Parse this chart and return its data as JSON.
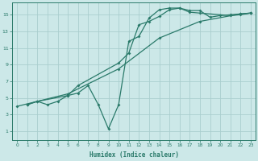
{
  "bg_color": "#cce8e8",
  "grid_color": "#aacece",
  "line_color": "#2a7a6a",
  "xlabel": "Humidex (Indice chaleur)",
  "xlim": [
    -0.5,
    23.5
  ],
  "ylim": [
    0,
    16.5
  ],
  "xticks": [
    0,
    1,
    2,
    3,
    4,
    5,
    6,
    7,
    8,
    9,
    10,
    11,
    12,
    13,
    14,
    15,
    16,
    17,
    18,
    19,
    20,
    21,
    22,
    23
  ],
  "yticks": [
    1,
    3,
    5,
    7,
    9,
    11,
    13,
    15
  ],
  "line1_x": [
    1,
    2,
    3,
    4,
    5,
    6,
    7,
    8,
    9,
    10,
    11,
    12,
    13,
    14,
    15,
    16,
    17,
    18,
    19,
    20,
    21,
    22,
    23
  ],
  "line1_y": [
    4.2,
    4.6,
    4.2,
    4.6,
    5.3,
    5.6,
    6.5,
    4.2,
    1.3,
    4.2,
    11.8,
    12.4,
    14.6,
    15.6,
    15.8,
    15.8,
    15.5,
    15.5,
    14.7,
    14.9,
    15.0,
    15.1,
    15.2
  ],
  "line2_x": [
    1,
    2,
    5,
    6,
    10,
    11,
    12,
    13,
    14,
    15,
    16,
    17,
    18,
    21,
    22,
    23
  ],
  "line2_y": [
    4.2,
    4.6,
    5.3,
    6.5,
    9.2,
    10.4,
    13.8,
    14.2,
    14.8,
    15.6,
    15.8,
    15.3,
    15.2,
    14.9,
    15.0,
    15.2
  ],
  "line3_x": [
    0,
    5,
    10,
    14,
    18,
    22,
    23
  ],
  "line3_y": [
    4.0,
    5.5,
    8.5,
    12.2,
    14.2,
    15.1,
    15.2
  ]
}
